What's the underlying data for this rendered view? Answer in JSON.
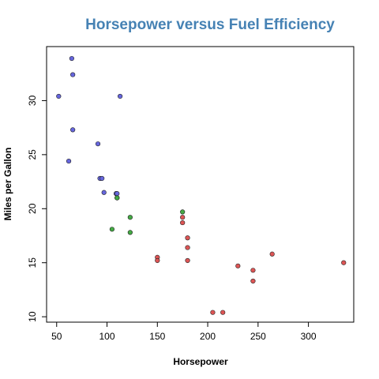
{
  "chart_data": {
    "type": "scatter",
    "title": "Horsepower versus Fuel Efficiency",
    "xlabel": "Horsepower",
    "ylabel": "Miles per Gallon",
    "xlim": [
      40,
      345
    ],
    "ylim": [
      9.5,
      35
    ],
    "xticks": [
      50,
      100,
      150,
      200,
      250,
      300
    ],
    "yticks": [
      10,
      15,
      20,
      25,
      30
    ],
    "grid": false,
    "legend": "none",
    "colors": {
      "blue": "#6666dd",
      "green": "#44aa44",
      "red": "#dd5555"
    },
    "series": [
      {
        "color": "#6666dd",
        "points": [
          {
            "x": 52,
            "y": 30.4
          },
          {
            "x": 65,
            "y": 33.9
          },
          {
            "x": 66,
            "y": 32.4
          },
          {
            "x": 66,
            "y": 27.3
          },
          {
            "x": 62,
            "y": 24.4
          },
          {
            "x": 91,
            "y": 26.0
          },
          {
            "x": 113,
            "y": 30.4
          },
          {
            "x": 93,
            "y": 22.8
          },
          {
            "x": 95,
            "y": 22.8
          },
          {
            "x": 97,
            "y": 21.5
          },
          {
            "x": 109,
            "y": 21.4
          },
          {
            "x": 110,
            "y": 21.4
          }
        ]
      },
      {
        "color": "#44aa44",
        "points": [
          {
            "x": 110,
            "y": 21.0
          },
          {
            "x": 110,
            "y": 21.0
          },
          {
            "x": 105,
            "y": 18.1
          },
          {
            "x": 123,
            "y": 19.2
          },
          {
            "x": 123,
            "y": 17.8
          },
          {
            "x": 175,
            "y": 19.7
          }
        ]
      },
      {
        "color": "#dd5555",
        "points": [
          {
            "x": 175,
            "y": 19.2
          },
          {
            "x": 175,
            "y": 18.7
          },
          {
            "x": 150,
            "y": 15.5
          },
          {
            "x": 150,
            "y": 15.2
          },
          {
            "x": 180,
            "y": 17.3
          },
          {
            "x": 180,
            "y": 16.4
          },
          {
            "x": 180,
            "y": 15.2
          },
          {
            "x": 205,
            "y": 10.4
          },
          {
            "x": 215,
            "y": 10.4
          },
          {
            "x": 230,
            "y": 14.7
          },
          {
            "x": 245,
            "y": 14.3
          },
          {
            "x": 245,
            "y": 13.3
          },
          {
            "x": 264,
            "y": 15.8
          },
          {
            "x": 335,
            "y": 15.0
          }
        ]
      }
    ]
  }
}
